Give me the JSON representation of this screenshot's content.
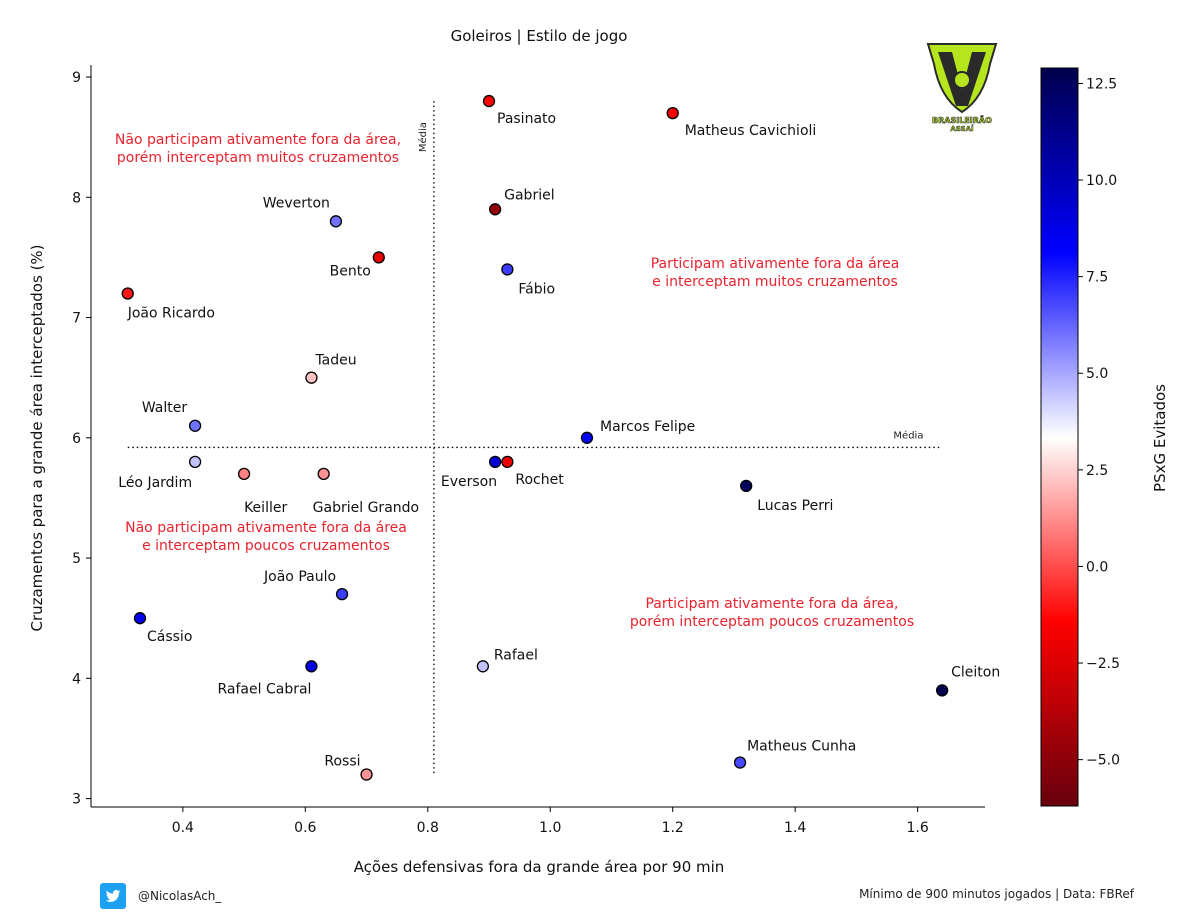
{
  "chart_data": {
    "type": "scatter",
    "title": "Goleiros | Estilo de jogo",
    "xlabel": "Ações defensivas fora da grande área por 90 min",
    "ylabel": "Cruzamentos para a grande área interceptados (%)",
    "xlim": [
      0.25,
      1.71
    ],
    "ylim": [
      2.93,
      9.1
    ],
    "xticks": [
      "0.4",
      "0.6",
      "0.8",
      "1.0",
      "1.2",
      "1.4",
      "1.6"
    ],
    "yticks": [
      "3",
      "4",
      "5",
      "6",
      "7",
      "8",
      "9"
    ],
    "mean_x": 0.81,
    "mean_y": 5.92,
    "mean_label": "Média",
    "colorbar": {
      "label": "PSxG Evitados",
      "min": -6.2,
      "max": 12.9,
      "ticks": [
        "12.5",
        "10.0",
        "7.5",
        "5.0",
        "2.5",
        "0.0",
        "−2.5",
        "−5.0"
      ],
      "colors": [
        "#67000d",
        "#ff0000",
        "#ffffff",
        "#0000ff",
        "#00004d"
      ]
    },
    "points": [
      {
        "name": "Pasinato",
        "x": 0.9,
        "y": 8.8,
        "color_value": -1.5
      },
      {
        "name": "Matheus Cavichioli",
        "x": 1.2,
        "y": 8.7,
        "color_value": -1.7
      },
      {
        "name": "Gabriel",
        "x": 0.91,
        "y": 7.9,
        "color_value": -4.8
      },
      {
        "name": "Weverton",
        "x": 0.65,
        "y": 7.8,
        "color_value": 6.0
      },
      {
        "name": "Bento",
        "x": 0.72,
        "y": 7.5,
        "color_value": -2.2
      },
      {
        "name": "Fábio",
        "x": 0.93,
        "y": 7.4,
        "color_value": 7.0
      },
      {
        "name": "João Ricardo",
        "x": 0.31,
        "y": 7.2,
        "color_value": -1.0
      },
      {
        "name": "Tadeu",
        "x": 0.61,
        "y": 6.5,
        "color_value": 2.2
      },
      {
        "name": "Walter",
        "x": 0.42,
        "y": 6.1,
        "color_value": 6.0
      },
      {
        "name": "Marcos Felipe",
        "x": 1.06,
        "y": 6.0,
        "color_value": 8.3
      },
      {
        "name": "Léo Jardim",
        "x": 0.42,
        "y": 5.8,
        "color_value": 4.5
      },
      {
        "name": "Everson",
        "x": 0.91,
        "y": 5.8,
        "color_value": 9.2
      },
      {
        "name": "Rochet",
        "x": 0.93,
        "y": 5.8,
        "color_value": -2.0
      },
      {
        "name": "Keiller",
        "x": 0.5,
        "y": 5.7,
        "color_value": 1.0
      },
      {
        "name": "Gabriel Grando",
        "x": 0.63,
        "y": 5.7,
        "color_value": 1.3
      },
      {
        "name": "Lucas Perri",
        "x": 1.32,
        "y": 5.6,
        "color_value": 12.5
      },
      {
        "name": "João Paulo",
        "x": 0.66,
        "y": 4.7,
        "color_value": 7.0
      },
      {
        "name": "Cássio",
        "x": 0.33,
        "y": 4.5,
        "color_value": 8.7
      },
      {
        "name": "Rafael Cabral",
        "x": 0.61,
        "y": 4.1,
        "color_value": 8.7
      },
      {
        "name": "Rafael",
        "x": 0.89,
        "y": 4.1,
        "color_value": 4.5
      },
      {
        "name": "Cleiton",
        "x": 1.64,
        "y": 3.9,
        "color_value": 12.8
      },
      {
        "name": "Matheus Cunha",
        "x": 1.31,
        "y": 3.3,
        "color_value": 6.8
      },
      {
        "name": "Rossi",
        "x": 0.7,
        "y": 3.2,
        "color_value": 1.3
      }
    ],
    "annotations": [
      {
        "lines": [
          "Não participam ativamente fora da área,",
          "porém interceptam muitos cruzamentos"
        ]
      },
      {
        "lines": [
          "Participam ativamente fora da área",
          "e interceptam muitos cruzamentos"
        ]
      },
      {
        "lines": [
          "Não participam ativamente fora da área",
          "e interceptam poucos cruzamentos"
        ]
      },
      {
        "lines": [
          "Participam ativamente fora da área,",
          "porém interceptam poucos cruzamentos"
        ]
      }
    ],
    "annotation_color": "#e8232e"
  },
  "logo": {
    "line1": "BRASILEIRÃO",
    "line2": "ASSAÍ"
  },
  "footer": {
    "handle": "@NicolasAch_",
    "source": "Mínimo de 900 minutos jogados | Data: FBRef",
    "icon": "twitter-icon"
  }
}
